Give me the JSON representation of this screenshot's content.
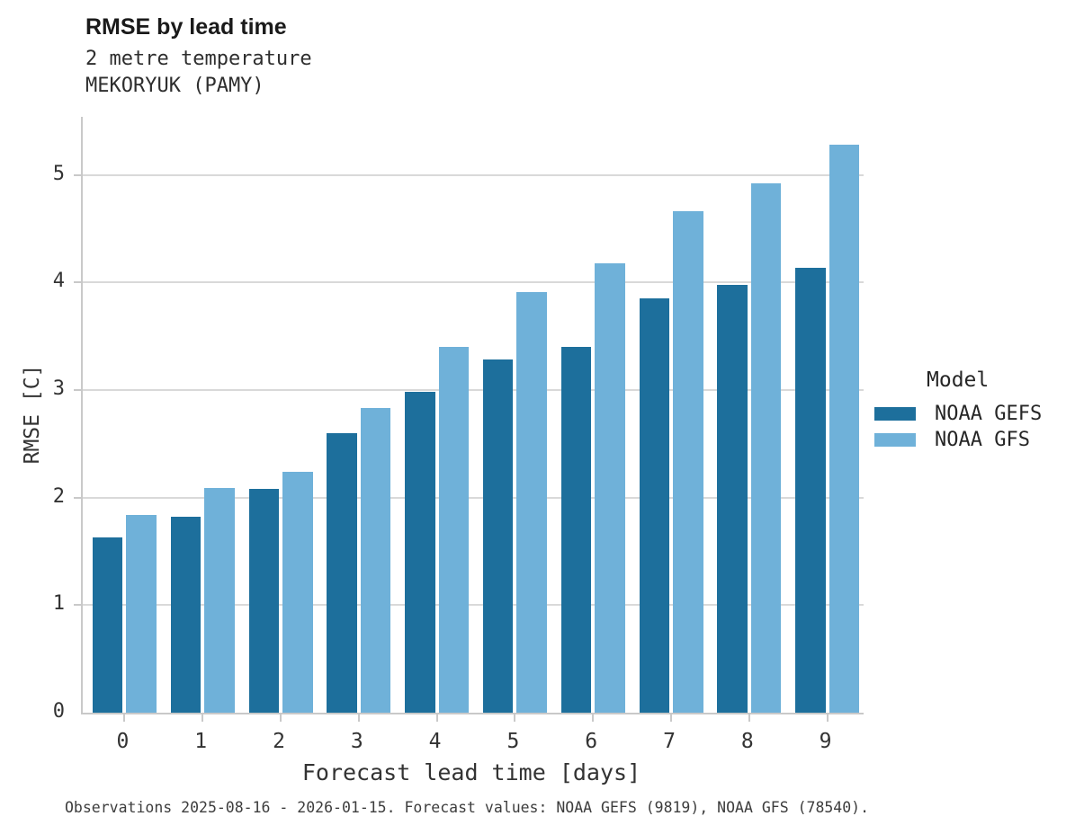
{
  "header": {
    "title": "RMSE by lead time",
    "subtitle_line1": "2 metre temperature",
    "subtitle_line2": "MEKORYUK (PAMY)"
  },
  "legend": {
    "title": "Model",
    "items": [
      {
        "label": "NOAA GEFS",
        "color": "#1d6f9c"
      },
      {
        "label": "NOAA GFS",
        "color": "#6fb1d9"
      }
    ]
  },
  "footer": {
    "caption": "Observations 2025-08-16 - 2026-01-15. Forecast values: NOAA GEFS (9819), NOAA GFS (78540)."
  },
  "chart_data": {
    "type": "bar",
    "title": "RMSE by lead time",
    "subtitle": [
      "2 metre temperature",
      "MEKORYUK (PAMY)"
    ],
    "categories": [
      "0",
      "1",
      "2",
      "3",
      "4",
      "5",
      "6",
      "7",
      "8",
      "9"
    ],
    "series": [
      {
        "name": "NOAA GEFS",
        "color": "#1d6f9c",
        "values": [
          1.63,
          1.82,
          2.08,
          2.6,
          2.98,
          3.28,
          3.4,
          3.85,
          3.98,
          4.14
        ]
      },
      {
        "name": "NOAA GFS",
        "color": "#6fb1d9",
        "values": [
          1.84,
          2.09,
          2.24,
          2.83,
          3.4,
          3.91,
          4.18,
          4.66,
          4.92,
          5.28
        ]
      }
    ],
    "xlabel": "Forecast lead time [days]",
    "ylabel": "RMSE [C]",
    "ylim": [
      0,
      5.54
    ],
    "yticks": [
      0,
      1,
      2,
      3,
      4,
      5
    ],
    "grid": "horizontal",
    "legend_title": "Model",
    "legend_position": "right",
    "background": "#ffffff",
    "grid_color": "#d9d9d9",
    "spine_color": "#c9c9c9"
  }
}
